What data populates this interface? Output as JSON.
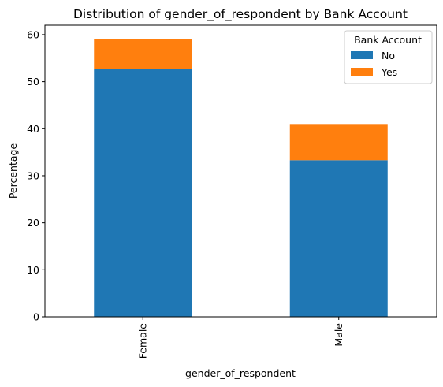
{
  "chart_data": {
    "type": "bar",
    "stacked": true,
    "title": "Distribution of gender_of_respondent by Bank Account",
    "xlabel": "gender_of_respondent",
    "ylabel": "Percentage",
    "categories": [
      "Female",
      "Male"
    ],
    "series": [
      {
        "name": "No",
        "values": [
          52.7,
          33.3
        ],
        "color": "#1f77b4"
      },
      {
        "name": "Yes",
        "values": [
          6.3,
          7.7
        ],
        "color": "#ff7f0e"
      }
    ],
    "ylim": [
      0,
      62
    ],
    "yticks": [
      0,
      10,
      20,
      30,
      40,
      50,
      60
    ],
    "grid": false,
    "legend": {
      "title": "Bank Account",
      "placement": "top-right"
    }
  }
}
